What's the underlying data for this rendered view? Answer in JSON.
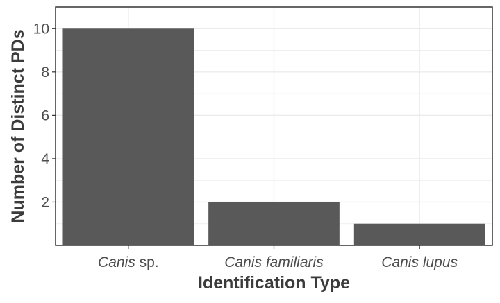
{
  "chart_data": {
    "type": "bar",
    "categories": [
      {
        "genus": "Canis",
        "epithet": "sp.",
        "italic_epithet": false
      },
      {
        "genus": "Canis",
        "epithet": "familiaris",
        "italic_epithet": true
      },
      {
        "genus": "Canis",
        "epithet": "lupus",
        "italic_epithet": true
      }
    ],
    "values": [
      10,
      2,
      1
    ],
    "xlabel": "Identification Type",
    "ylabel": "Number of Distinct PDs",
    "ylim": [
      0,
      11
    ],
    "yticks": [
      2,
      4,
      6,
      8,
      10
    ],
    "grid": true,
    "bar_color": "#595959",
    "grid_color": "#ebebeb",
    "panel_border_color": "#333333"
  }
}
